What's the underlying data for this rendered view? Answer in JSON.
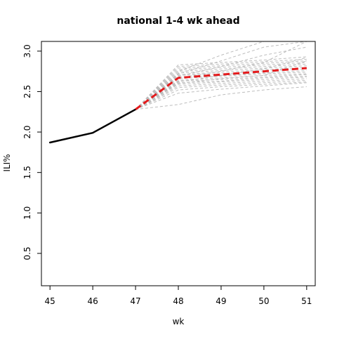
{
  "chart_data": {
    "type": "line",
    "title": "national 1-4 wk ahead",
    "xlabel": "wk",
    "ylabel": "ILI%",
    "xlim": [
      44.8,
      51.2
    ],
    "ylim": [
      0.1,
      3.12
    ],
    "xticks": [
      "45",
      "46",
      "47",
      "48",
      "49",
      "50",
      "51"
    ],
    "yticks": [
      "0.5",
      "1.0",
      "1.5",
      "2.0",
      "2.5",
      "3.0"
    ],
    "grid": false,
    "legend": "none",
    "colors": {
      "observed": "#000000",
      "ensemble": "#bdbdbd",
      "median": "#e41a1c"
    },
    "x": [
      45,
      46,
      47,
      48,
      49,
      50,
      51
    ],
    "series": [
      {
        "role": "observed",
        "x": [
          45,
          46,
          47
        ],
        "values": [
          1.87,
          1.99,
          2.28
        ]
      },
      {
        "role": "median",
        "x": [
          47,
          48,
          49,
          50,
          51
        ],
        "values": [
          2.28,
          2.67,
          2.71,
          2.75,
          2.79
        ]
      }
    ],
    "ensemble": [
      [
        2.28,
        2.34,
        2.46,
        2.52,
        2.56
      ],
      [
        2.28,
        2.48,
        2.53,
        2.57,
        2.61
      ],
      [
        2.28,
        2.52,
        2.56,
        2.59,
        2.62
      ],
      [
        2.28,
        2.55,
        2.58,
        2.61,
        2.64
      ],
      [
        2.28,
        2.57,
        2.6,
        2.63,
        2.66
      ],
      [
        2.28,
        2.59,
        2.62,
        2.65,
        2.68
      ],
      [
        2.28,
        2.61,
        2.63,
        2.67,
        2.69
      ],
      [
        2.28,
        2.63,
        2.65,
        2.68,
        2.71
      ],
      [
        2.28,
        2.64,
        2.67,
        2.7,
        2.72
      ],
      [
        2.28,
        2.66,
        2.69,
        2.72,
        2.74
      ],
      [
        2.28,
        2.68,
        2.7,
        2.73,
        2.76
      ],
      [
        2.28,
        2.7,
        2.72,
        2.75,
        2.78
      ],
      [
        2.28,
        2.71,
        2.74,
        2.77,
        2.8
      ],
      [
        2.28,
        2.73,
        2.76,
        2.79,
        2.82
      ],
      [
        2.28,
        2.75,
        2.78,
        2.81,
        2.84
      ],
      [
        2.28,
        2.77,
        2.8,
        2.83,
        2.86
      ],
      [
        2.28,
        2.79,
        2.82,
        2.85,
        2.88
      ],
      [
        2.28,
        2.81,
        2.84,
        2.87,
        2.9
      ],
      [
        2.28,
        2.83,
        2.86,
        2.89,
        2.93
      ],
      [
        2.28,
        2.69,
        2.81,
        2.95,
        3.05
      ],
      [
        2.28,
        2.72,
        2.88,
        3.05,
        3.12
      ],
      [
        2.28,
        2.75,
        2.95,
        3.12,
        3.12
      ],
      [
        2.28,
        2.67,
        2.75,
        2.86,
        3.12
      ],
      [
        2.28,
        2.6,
        2.66,
        2.7,
        2.88
      ],
      [
        2.28,
        2.62,
        2.7,
        2.78,
        2.92
      ]
    ]
  }
}
